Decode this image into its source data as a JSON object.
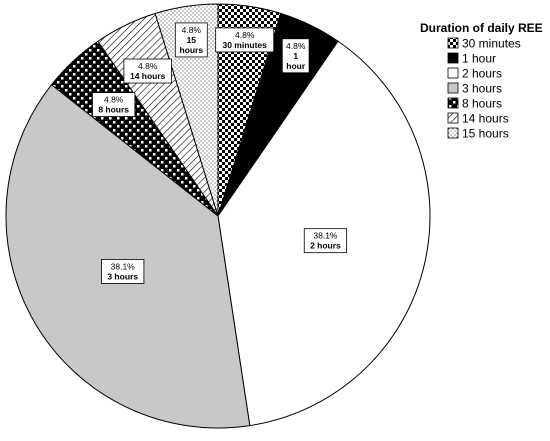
{
  "chart_data": {
    "type": "pie",
    "legend_title": "Duration of daily REE",
    "legend_position": "top-right",
    "start_angle_deg": 0,
    "direction": "clockwise",
    "slices": [
      {
        "label": "30 minutes",
        "value": 4.8,
        "pct_label": "4.8%",
        "pattern": "checker"
      },
      {
        "label": "1 hour",
        "value": 4.8,
        "pct_label": "4.8%",
        "pattern": "black"
      },
      {
        "label": "2 hours",
        "value": 38.1,
        "pct_label": "38.1%",
        "pattern": "white"
      },
      {
        "label": "3 hours",
        "value": 38.1,
        "pct_label": "38.1%",
        "pattern": "gray"
      },
      {
        "label": "8 hours",
        "value": 4.8,
        "pct_label": "4.8%",
        "pattern": "bigchecker"
      },
      {
        "label": "14 hours",
        "value": 4.8,
        "pct_label": "4.8%",
        "pattern": "diagonal"
      },
      {
        "label": "15 hours",
        "value": 4.8,
        "pct_label": "4.8%",
        "pattern": "dots"
      }
    ],
    "colors": {
      "black": "#000000",
      "gray": "#c8c8c8",
      "white": "#ffffff"
    }
  }
}
